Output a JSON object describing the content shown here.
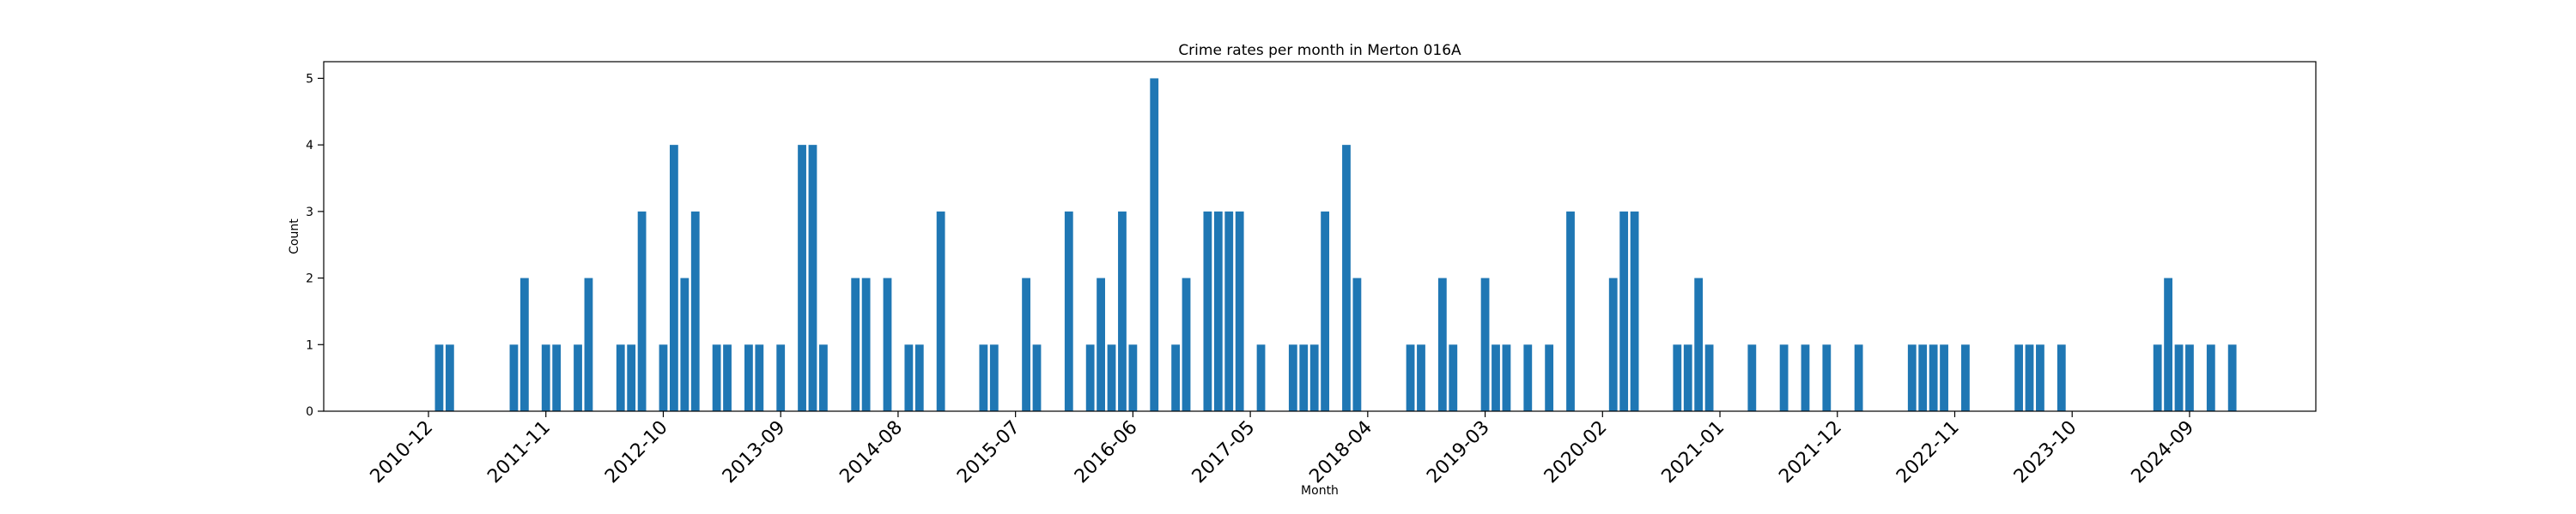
{
  "chart_data": {
    "type": "bar",
    "title": "Crime rates per month in Merton 016A",
    "xlabel": "Month",
    "ylabel": "Count",
    "ylim": [
      0,
      5.25
    ],
    "yticks": [
      0,
      1,
      2,
      3,
      4,
      5
    ],
    "xticks": [
      "2010-12",
      "2011-11",
      "2012-10",
      "2013-09",
      "2014-08",
      "2015-07",
      "2016-06",
      "2017-05",
      "2018-04",
      "2019-03",
      "2020-02",
      "2021-01",
      "2021-12",
      "2022-11",
      "2023-10",
      "2024-09"
    ],
    "bar_color": "#1f77b4",
    "grid": false,
    "x": [
      "2011-01",
      "2011-02",
      "2011-08",
      "2011-09",
      "2011-11",
      "2011-12",
      "2012-02",
      "2012-03",
      "2012-06",
      "2012-07",
      "2012-08",
      "2012-10",
      "2012-11",
      "2012-12",
      "2013-01",
      "2013-03",
      "2013-04",
      "2013-06",
      "2013-07",
      "2013-09",
      "2013-11",
      "2013-12",
      "2014-01",
      "2014-04",
      "2014-05",
      "2014-07",
      "2014-09",
      "2014-10",
      "2014-12",
      "2015-04",
      "2015-05",
      "2015-08",
      "2015-09",
      "2015-12",
      "2016-02",
      "2016-03",
      "2016-04",
      "2016-05",
      "2016-06",
      "2016-08",
      "2016-10",
      "2016-11",
      "2017-01",
      "2017-02",
      "2017-03",
      "2017-04",
      "2017-06",
      "2017-09",
      "2017-10",
      "2017-11",
      "2017-12",
      "2018-02",
      "2018-03",
      "2018-08",
      "2018-09",
      "2018-11",
      "2018-12",
      "2019-03",
      "2019-04",
      "2019-05",
      "2019-07",
      "2019-09",
      "2019-11",
      "2020-03",
      "2020-04",
      "2020-05",
      "2020-09",
      "2020-10",
      "2020-11",
      "2020-12",
      "2021-04",
      "2021-07",
      "2021-09",
      "2021-11",
      "2022-02",
      "2022-07",
      "2022-08",
      "2022-09",
      "2022-10",
      "2022-12",
      "2023-05",
      "2023-06",
      "2023-07",
      "2023-09",
      "2024-06",
      "2024-07",
      "2024-08",
      "2024-09",
      "2024-11",
      "2025-01"
    ],
    "values": [
      1,
      1,
      1,
      2,
      1,
      1,
      1,
      2,
      1,
      1,
      3,
      1,
      4,
      2,
      3,
      1,
      1,
      1,
      1,
      1,
      4,
      4,
      1,
      2,
      2,
      2,
      1,
      1,
      3,
      1,
      1,
      2,
      1,
      3,
      1,
      2,
      1,
      3,
      1,
      5,
      1,
      2,
      3,
      3,
      3,
      3,
      1,
      1,
      1,
      1,
      3,
      4,
      2,
      1,
      1,
      2,
      1,
      2,
      1,
      1,
      1,
      1,
      3,
      2,
      3,
      3,
      1,
      1,
      2,
      1,
      1,
      1,
      1,
      1,
      1,
      1,
      1,
      1,
      1,
      1,
      1,
      1,
      1,
      1,
      1,
      2,
      1,
      1,
      1,
      1
    ]
  }
}
